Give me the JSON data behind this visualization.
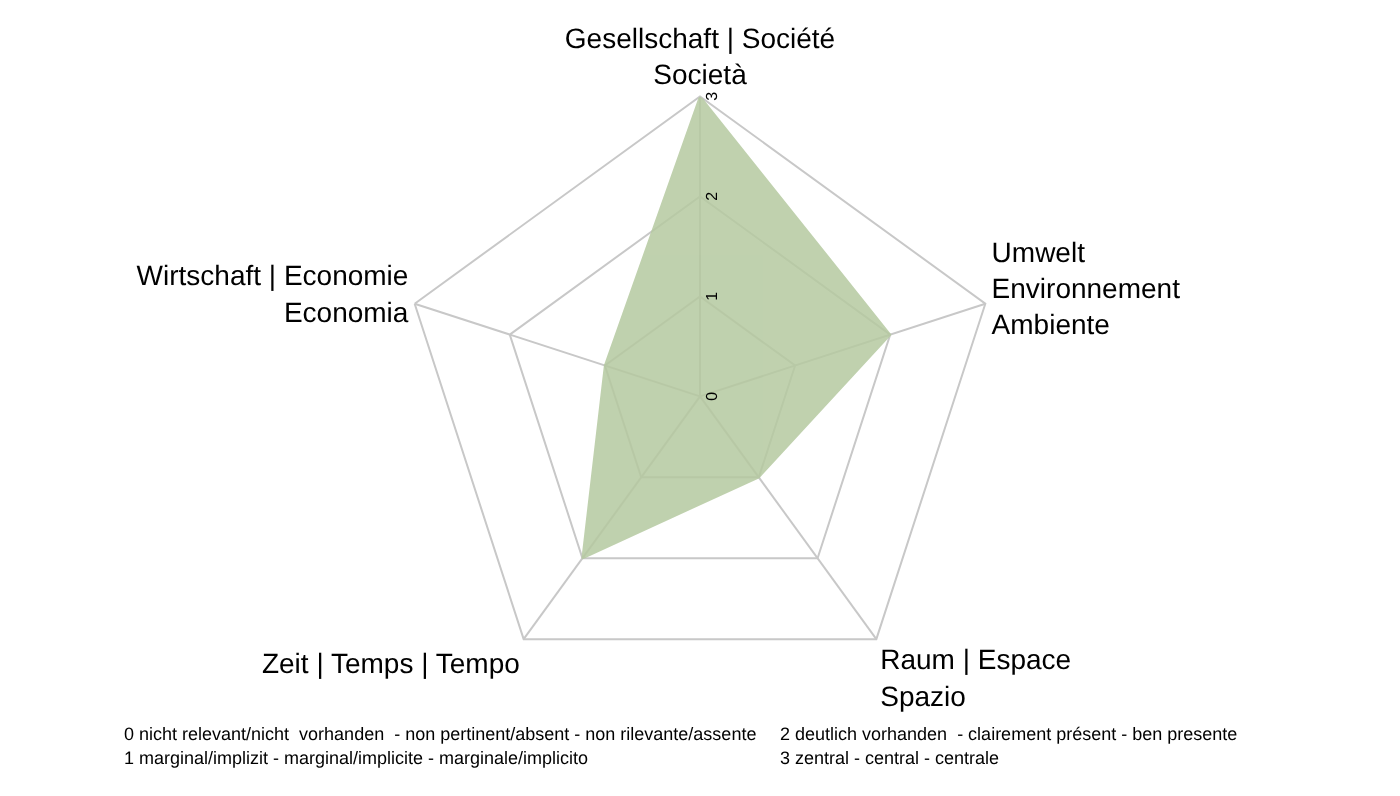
{
  "chart_data": {
    "type": "radar",
    "categories": [
      "Gesellschaft | Société\nSocietà",
      "Umwelt\nEnvironnement\nAmbiente",
      "Raum | Espace\nSpazio",
      "Zeit | Temps | Tempo",
      "Wirtschaft | Economie\nEconomia"
    ],
    "series": [
      {
        "color": "#b5c9a0",
        "values": [
          3,
          2,
          1,
          2,
          1
        ]
      }
    ],
    "ylim": [
      0,
      3
    ],
    "yticks": [
      0,
      1,
      2,
      3
    ],
    "grid": true,
    "annotations": [
      "0 nicht relevant/nicht  vorhanden  - non pertinent/absent - non rilevante/assente",
      "1 marginal/implizit - marginal/implicite - marginale/implicito",
      "2 deutlich vorhanden  - clairement présent - ben presente",
      "3 zentral - central - centrale"
    ]
  }
}
